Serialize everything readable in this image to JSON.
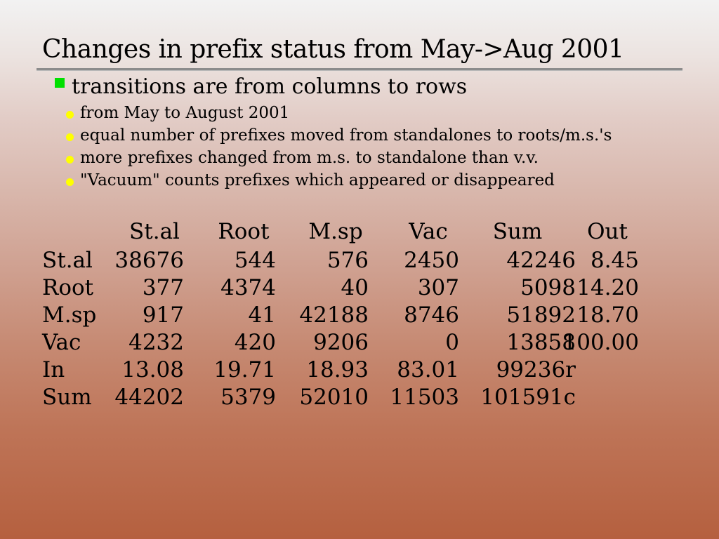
{
  "title": "Changes in prefix status from May->Aug 2001",
  "main_bullet": "transitions are from columns to rows",
  "sub_bullets": [
    "from May to August 2001",
    "equal number of prefixes moved from standalones to roots/m.s.'s",
    "more prefixes changed from m.s. to standalone than v.v.",
    "\"Vacuum\" counts prefixes which appeared or disappeared"
  ],
  "colors": {
    "square_bullet": "#00e000",
    "dot_bullet": "#ffff00"
  },
  "table": {
    "columns": [
      "St.al",
      "Root",
      "M.sp",
      "Vac",
      "Sum",
      "Out"
    ],
    "rows": [
      {
        "label": "St.al",
        "cells": [
          "38676",
          "544",
          "576",
          "2450",
          "42246",
          "8.45"
        ]
      },
      {
        "label": "Root",
        "cells": [
          "377",
          "4374",
          "40",
          "307",
          "5098",
          "14.20"
        ]
      },
      {
        "label": "M.sp",
        "cells": [
          "917",
          "41",
          "42188",
          "8746",
          "51892",
          "18.70"
        ]
      },
      {
        "label": "Vac",
        "cells": [
          "4232",
          "420",
          "9206",
          "0",
          "13858",
          "100.00"
        ]
      },
      {
        "label": "In",
        "cells": [
          "13.08",
          "19.71",
          "18.93",
          "83.01",
          "99236r",
          ""
        ]
      },
      {
        "label": "Sum",
        "cells": [
          "44202",
          "5379",
          "52010",
          "11503",
          "101591c",
          ""
        ]
      }
    ]
  }
}
